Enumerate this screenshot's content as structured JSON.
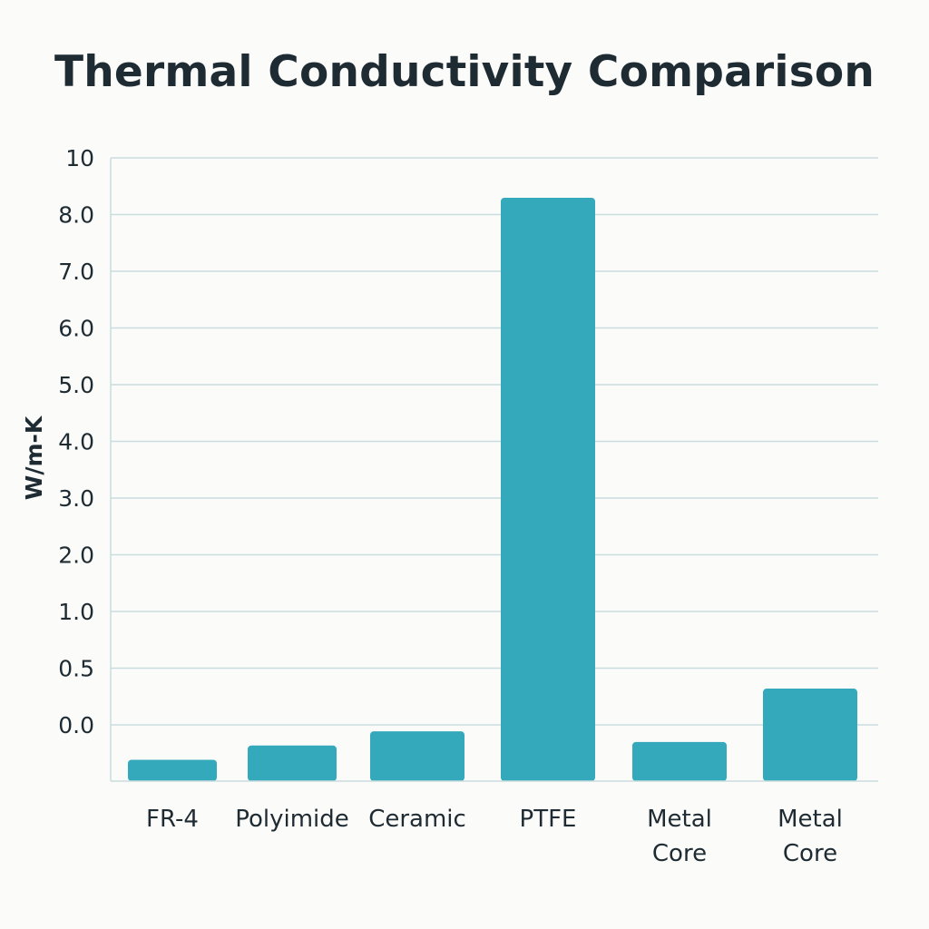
{
  "chart_data": {
    "type": "bar",
    "title": "Thermal Conductivity Comparison",
    "ylabel": "W/m-K",
    "xlabel": "",
    "categories": [
      "FR-4",
      "Polyimide",
      "Ceramic",
      "PTFE",
      "Metal Core",
      "Metal Core"
    ],
    "category_lines": [
      [
        "FR-4"
      ],
      [
        "Polyimide"
      ],
      [
        "Ceramic"
      ],
      [
        "PTFE"
      ],
      [
        "Metal",
        "Core"
      ],
      [
        "Metal",
        "Core"
      ]
    ],
    "values": [
      0.3,
      0.5,
      0.7,
      8.2,
      0.55,
      1.3
    ],
    "y_ticks": [
      "10",
      "8.0",
      "7.0",
      "6.0",
      "5.0",
      "4.0",
      "3.0",
      "2.0",
      "1.0",
      "0.5",
      "0.0"
    ],
    "grid": true,
    "bar_color": "#33a9bb",
    "grid_color": "#c9dde0"
  }
}
